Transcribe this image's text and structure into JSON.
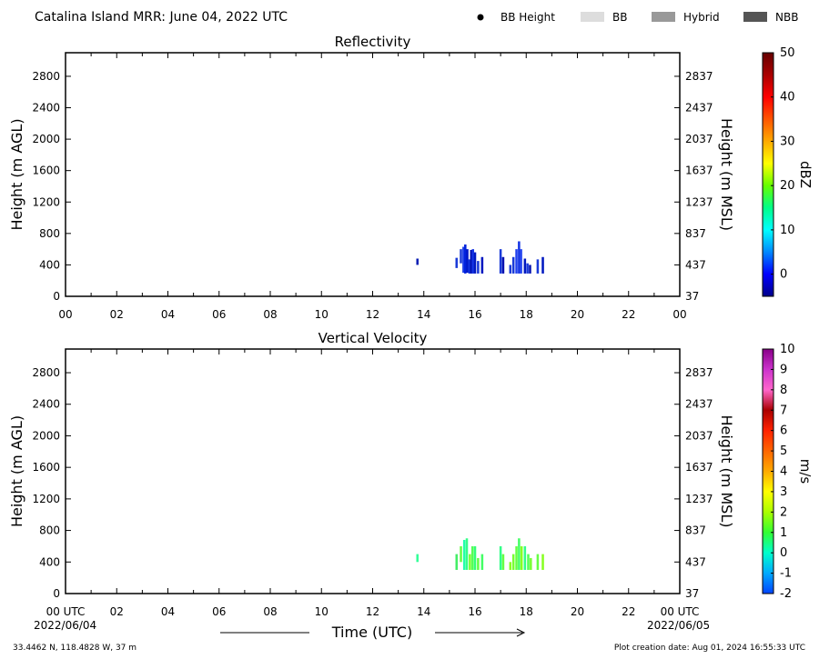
{
  "header": {
    "title": "Catalina Island MRR:  June 04, 2022 UTC",
    "legend": [
      {
        "label": "BB Height",
        "marker": "dot",
        "color": "#000000"
      },
      {
        "label": "BB",
        "marker": "box",
        "color": "#dddddd"
      },
      {
        "label": "Hybrid",
        "marker": "box",
        "color": "#999999"
      },
      {
        "label": "NBB",
        "marker": "box",
        "color": "#555555"
      }
    ]
  },
  "footer": {
    "xlabel": "Time (UTC)",
    "start_date": "2022/06/04",
    "end_date": "2022/06/05",
    "location": "33.4462 N, 118.4828 W, 37 m",
    "creation": "Plot creation date: Aug 01, 2024 16:55:33 UTC"
  },
  "chart_data": [
    {
      "type": "heatmap",
      "title": "Reflectivity",
      "ylabel": "Height (m AGL)",
      "ylabel_right": "Height (m MSL)",
      "xlim": [
        0,
        24
      ],
      "ylim": [
        0,
        3100
      ],
      "x_ticks": [
        "00",
        "02",
        "04",
        "06",
        "08",
        "10",
        "12",
        "14",
        "16",
        "18",
        "20",
        "22",
        "00"
      ],
      "y_ticks": [
        0,
        400,
        800,
        1200,
        1600,
        2000,
        2400,
        2800
      ],
      "y_ticks_right": [
        "37",
        "437",
        "837",
        "1237",
        "1637",
        "2037",
        "2437",
        "2837"
      ],
      "colorbar": {
        "label": "dBZ",
        "range": [
          -5,
          50
        ],
        "ticks": [
          "0",
          "10",
          "20",
          "30",
          "40",
          "50"
        ],
        "tick_values": [
          0,
          10,
          20,
          30,
          40,
          50
        ],
        "colors": [
          "#00008b",
          "#0000ff",
          "#0088ff",
          "#00ffff",
          "#00ff88",
          "#66ff00",
          "#ffff00",
          "#ffaa00",
          "#ff5500",
          "#ff0000",
          "#aa0000",
          "#660000"
        ]
      },
      "columns": [
        {
          "t": 13.75,
          "h0": 400,
          "h1": 480,
          "color": "#0a1eb4"
        },
        {
          "t": 15.28,
          "h0": 360,
          "h1": 490,
          "color": "#1a3ad8"
        },
        {
          "t": 15.45,
          "h0": 420,
          "h1": 600,
          "color": "#1a3ad8"
        },
        {
          "t": 15.55,
          "h0": 300,
          "h1": 630,
          "color": "#1f3fe8"
        },
        {
          "t": 15.62,
          "h0": 290,
          "h1": 660,
          "color": "#0022dd"
        },
        {
          "t": 15.7,
          "h0": 300,
          "h1": 600,
          "color": "#0018c8"
        },
        {
          "t": 15.78,
          "h0": 290,
          "h1": 470,
          "color": "#1133e0"
        },
        {
          "t": 15.85,
          "h0": 290,
          "h1": 590,
          "color": "#0010b0"
        },
        {
          "t": 15.92,
          "h0": 290,
          "h1": 600,
          "color": "#1535e5"
        },
        {
          "t": 16.0,
          "h0": 290,
          "h1": 560,
          "color": "#0018c0"
        },
        {
          "t": 16.12,
          "h0": 290,
          "h1": 450,
          "color": "#1a3ad8"
        },
        {
          "t": 16.28,
          "h0": 290,
          "h1": 500,
          "color": "#0018c0"
        },
        {
          "t": 17.0,
          "h0": 290,
          "h1": 600,
          "color": "#1a3ad8"
        },
        {
          "t": 17.1,
          "h0": 290,
          "h1": 500,
          "color": "#0010b0"
        },
        {
          "t": 17.38,
          "h0": 290,
          "h1": 400,
          "color": "#1a3ad8"
        },
        {
          "t": 17.5,
          "h0": 290,
          "h1": 500,
          "color": "#1a3ad8"
        },
        {
          "t": 17.62,
          "h0": 290,
          "h1": 600,
          "color": "#2040ee"
        },
        {
          "t": 17.72,
          "h0": 290,
          "h1": 700,
          "color": "#1535e5"
        },
        {
          "t": 17.8,
          "h0": 290,
          "h1": 600,
          "color": "#2a4af0"
        },
        {
          "t": 17.95,
          "h0": 290,
          "h1": 480,
          "color": "#0018c0"
        },
        {
          "t": 18.05,
          "h0": 290,
          "h1": 420,
          "color": "#1a3ad8"
        },
        {
          "t": 18.15,
          "h0": 290,
          "h1": 400,
          "color": "#0010b0"
        },
        {
          "t": 18.45,
          "h0": 290,
          "h1": 470,
          "color": "#1a3ad8"
        },
        {
          "t": 18.65,
          "h0": 290,
          "h1": 500,
          "color": "#0018c0"
        }
      ]
    },
    {
      "type": "heatmap",
      "title": "Vertical Velocity",
      "ylabel": "Height (m AGL)",
      "ylabel_right": "Height (m MSL)",
      "xlim": [
        0,
        24
      ],
      "ylim": [
        0,
        3100
      ],
      "x_ticks": [
        "00 UTC",
        "02",
        "04",
        "06",
        "08",
        "10",
        "12",
        "14",
        "16",
        "18",
        "20",
        "22",
        "00 UTC"
      ],
      "y_ticks": [
        0,
        400,
        800,
        1200,
        1600,
        2000,
        2400,
        2800
      ],
      "y_ticks_right": [
        "37",
        "437",
        "837",
        "1237",
        "1637",
        "2037",
        "2437",
        "2837"
      ],
      "colorbar": {
        "label": "m/s",
        "range": [
          -2,
          10
        ],
        "ticks": [
          "-2",
          "-1",
          "0",
          "1",
          "2",
          "3",
          "4",
          "5",
          "6",
          "7",
          "8",
          "9",
          "10"
        ],
        "tick_values": [
          -2,
          -1,
          0,
          1,
          2,
          3,
          4,
          5,
          6,
          7,
          8,
          9,
          10
        ],
        "colors": [
          "#0044ff",
          "#00aaff",
          "#00ffcc",
          "#33ff33",
          "#aaff00",
          "#ffff00",
          "#ffaa00",
          "#ff6600",
          "#ff2200",
          "#aa0000",
          "#ff66cc",
          "#cc33cc",
          "#880088"
        ]
      },
      "columns": [
        {
          "t": 13.75,
          "h0": 400,
          "h1": 500,
          "color": "#33ff99"
        },
        {
          "t": 15.28,
          "h0": 300,
          "h1": 500,
          "color": "#44ee66"
        },
        {
          "t": 15.45,
          "h0": 400,
          "h1": 600,
          "color": "#66ff44"
        },
        {
          "t": 15.58,
          "h0": 300,
          "h1": 680,
          "color": "#22ffaa"
        },
        {
          "t": 15.68,
          "h0": 300,
          "h1": 700,
          "color": "#33ff88"
        },
        {
          "t": 15.8,
          "h0": 300,
          "h1": 500,
          "color": "#77ff33"
        },
        {
          "t": 15.9,
          "h0": 300,
          "h1": 600,
          "color": "#55ff55"
        },
        {
          "t": 16.0,
          "h0": 300,
          "h1": 600,
          "color": "#33ff77"
        },
        {
          "t": 16.12,
          "h0": 300,
          "h1": 450,
          "color": "#66ff44"
        },
        {
          "t": 16.28,
          "h0": 300,
          "h1": 500,
          "color": "#44ff66"
        },
        {
          "t": 17.0,
          "h0": 300,
          "h1": 600,
          "color": "#33ff88"
        },
        {
          "t": 17.1,
          "h0": 300,
          "h1": 500,
          "color": "#66ff44"
        },
        {
          "t": 17.38,
          "h0": 300,
          "h1": 400,
          "color": "#88ff22"
        },
        {
          "t": 17.5,
          "h0": 300,
          "h1": 500,
          "color": "#77ff33"
        },
        {
          "t": 17.62,
          "h0": 300,
          "h1": 600,
          "color": "#66ff44"
        },
        {
          "t": 17.72,
          "h0": 300,
          "h1": 700,
          "color": "#44ff66"
        },
        {
          "t": 17.82,
          "h0": 300,
          "h1": 600,
          "color": "#88ff22"
        },
        {
          "t": 17.95,
          "h0": 300,
          "h1": 600,
          "color": "#33ff88"
        },
        {
          "t": 18.08,
          "h0": 300,
          "h1": 500,
          "color": "#55ff55"
        },
        {
          "t": 18.18,
          "h0": 300,
          "h1": 450,
          "color": "#77ff33"
        },
        {
          "t": 18.45,
          "h0": 300,
          "h1": 500,
          "color": "#66ff44"
        },
        {
          "t": 18.65,
          "h0": 300,
          "h1": 500,
          "color": "#88ff22"
        }
      ]
    }
  ]
}
